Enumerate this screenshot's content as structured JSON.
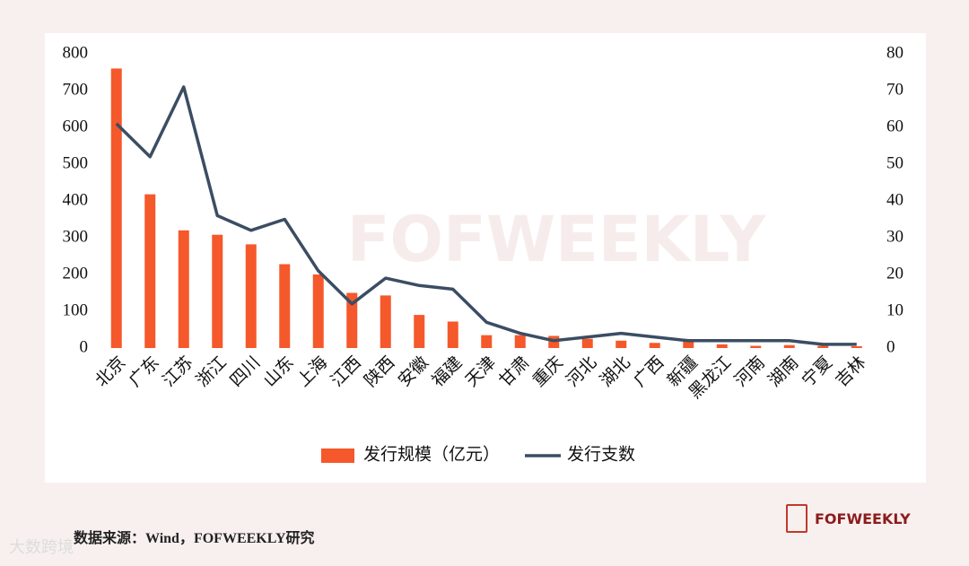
{
  "chart_data": {
    "type": "bar-line",
    "categories": [
      "北京",
      "广东",
      "江苏",
      "浙江",
      "四川",
      "山东",
      "上海",
      "江西",
      "陕西",
      "安徽",
      "福建",
      "天津",
      "甘肃",
      "重庆",
      "河北",
      "湖北",
      "广西",
      "新疆",
      "黑龙江",
      "河南",
      "湖南",
      "宁夏",
      "吉林"
    ],
    "series": [
      {
        "name": "发行规模（亿元）",
        "type": "bar",
        "color": "#f5582a",
        "values": [
          760,
          418,
          320,
          308,
          282,
          228,
          200,
          150,
          143,
          90,
          72,
          35,
          35,
          33,
          25,
          20,
          14,
          18,
          10,
          6,
          8,
          6,
          5
        ]
      },
      {
        "name": "发行支数",
        "type": "line",
        "axis": "y2",
        "color": "#3b4d63",
        "values": [
          61,
          52,
          71,
          36,
          32,
          35,
          21,
          12,
          19,
          17,
          16,
          7,
          4,
          2,
          3,
          4,
          3,
          2,
          2,
          2,
          2,
          1,
          1
        ]
      }
    ],
    "ylim": [
      0,
      800
    ],
    "yticks": [
      0,
      100,
      200,
      300,
      400,
      500,
      600,
      700,
      800
    ],
    "y2lim": [
      0,
      80
    ],
    "y2ticks": [
      0,
      10,
      20,
      30,
      40,
      50,
      60,
      70,
      80
    ],
    "legend": "bottom"
  },
  "source": "数据来源：Wind，FOFWEEKLY研究",
  "logo": "FOFWEEKLY",
  "watermark": "FOFWEEKLY",
  "watermark2": "大数跨境"
}
